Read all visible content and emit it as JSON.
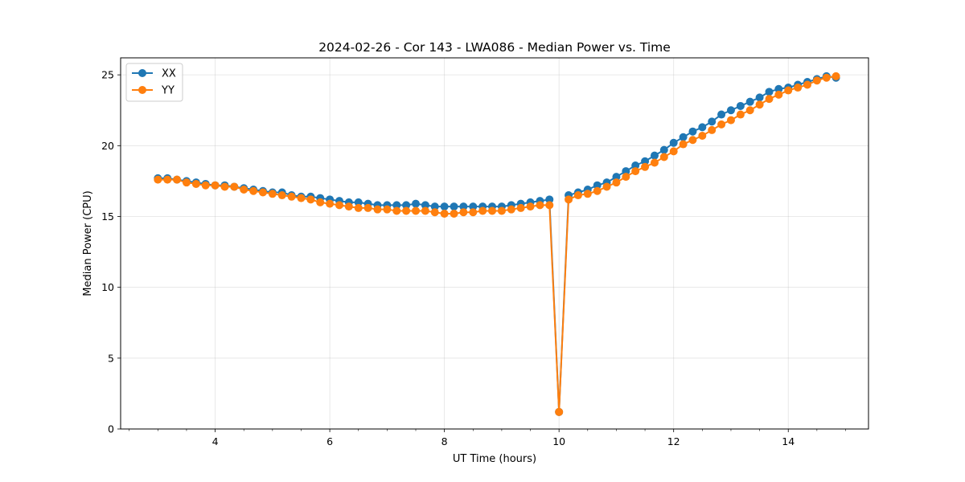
{
  "chart_data": {
    "type": "line",
    "title": "2024-02-26 - Cor 143 - LWA086 - Median Power vs. Time",
    "xlabel": "UT Time (hours)",
    "ylabel": "Median Power (CPU)",
    "xlim": [
      2.35,
      15.4
    ],
    "ylim": [
      0,
      26.2
    ],
    "x_ticks": [
      4,
      6,
      8,
      10,
      12,
      14
    ],
    "y_ticks": [
      0,
      5,
      10,
      15,
      20,
      25
    ],
    "x_minor_step": 0.5,
    "grid": true,
    "legend": "top-left",
    "x": [
      3.0,
      3.167,
      3.333,
      3.5,
      3.667,
      3.833,
      4.0,
      4.167,
      4.333,
      4.5,
      4.667,
      4.833,
      5.0,
      5.167,
      5.333,
      5.5,
      5.667,
      5.833,
      6.0,
      6.167,
      6.333,
      6.5,
      6.667,
      6.833,
      7.0,
      7.167,
      7.333,
      7.5,
      7.667,
      7.833,
      8.0,
      8.167,
      8.333,
      8.5,
      8.667,
      8.833,
      9.0,
      9.167,
      9.333,
      9.5,
      9.667,
      9.833,
      10.0,
      10.167,
      10.333,
      10.5,
      10.667,
      10.833,
      11.0,
      11.167,
      11.333,
      11.5,
      11.667,
      11.833,
      12.0,
      12.167,
      12.333,
      12.5,
      12.667,
      12.833,
      13.0,
      13.167,
      13.333,
      13.5,
      13.667,
      13.833,
      14.0,
      14.167,
      14.333,
      14.5,
      14.667,
      14.833
    ],
    "series": [
      {
        "name": "XX",
        "color": "#1f77b4",
        "values": [
          17.7,
          17.7,
          17.6,
          17.5,
          17.4,
          17.3,
          17.2,
          17.2,
          17.1,
          17.0,
          16.9,
          16.8,
          16.7,
          16.7,
          16.5,
          16.4,
          16.4,
          16.3,
          16.2,
          16.1,
          16.0,
          16.0,
          15.9,
          15.8,
          15.8,
          15.8,
          15.8,
          15.9,
          15.8,
          15.7,
          15.7,
          15.7,
          15.7,
          15.7,
          15.7,
          15.7,
          15.7,
          15.8,
          15.9,
          16.0,
          16.1,
          16.2,
          1.2,
          16.5,
          16.7,
          16.9,
          17.2,
          17.4,
          17.8,
          18.2,
          18.6,
          18.9,
          19.3,
          19.7,
          20.2,
          20.6,
          21.0,
          21.3,
          21.7,
          22.2,
          22.5,
          22.8,
          23.1,
          23.4,
          23.8,
          24.0,
          24.1,
          24.3,
          24.5,
          24.7,
          24.9,
          24.8
        ]
      },
      {
        "name": "YY",
        "color": "#ff7f0e",
        "values": [
          17.6,
          17.6,
          17.6,
          17.4,
          17.3,
          17.2,
          17.2,
          17.1,
          17.1,
          16.9,
          16.8,
          16.7,
          16.6,
          16.5,
          16.4,
          16.3,
          16.2,
          16.0,
          15.9,
          15.8,
          15.7,
          15.6,
          15.6,
          15.5,
          15.5,
          15.4,
          15.4,
          15.4,
          15.4,
          15.3,
          15.2,
          15.2,
          15.3,
          15.3,
          15.4,
          15.4,
          15.4,
          15.5,
          15.6,
          15.7,
          15.8,
          15.8,
          1.2,
          16.2,
          16.5,
          16.6,
          16.8,
          17.1,
          17.4,
          17.8,
          18.2,
          18.5,
          18.8,
          19.2,
          19.6,
          20.1,
          20.4,
          20.7,
          21.1,
          21.5,
          21.8,
          22.2,
          22.5,
          22.9,
          23.3,
          23.6,
          23.9,
          24.1,
          24.3,
          24.6,
          24.8,
          24.9
        ]
      }
    ]
  }
}
